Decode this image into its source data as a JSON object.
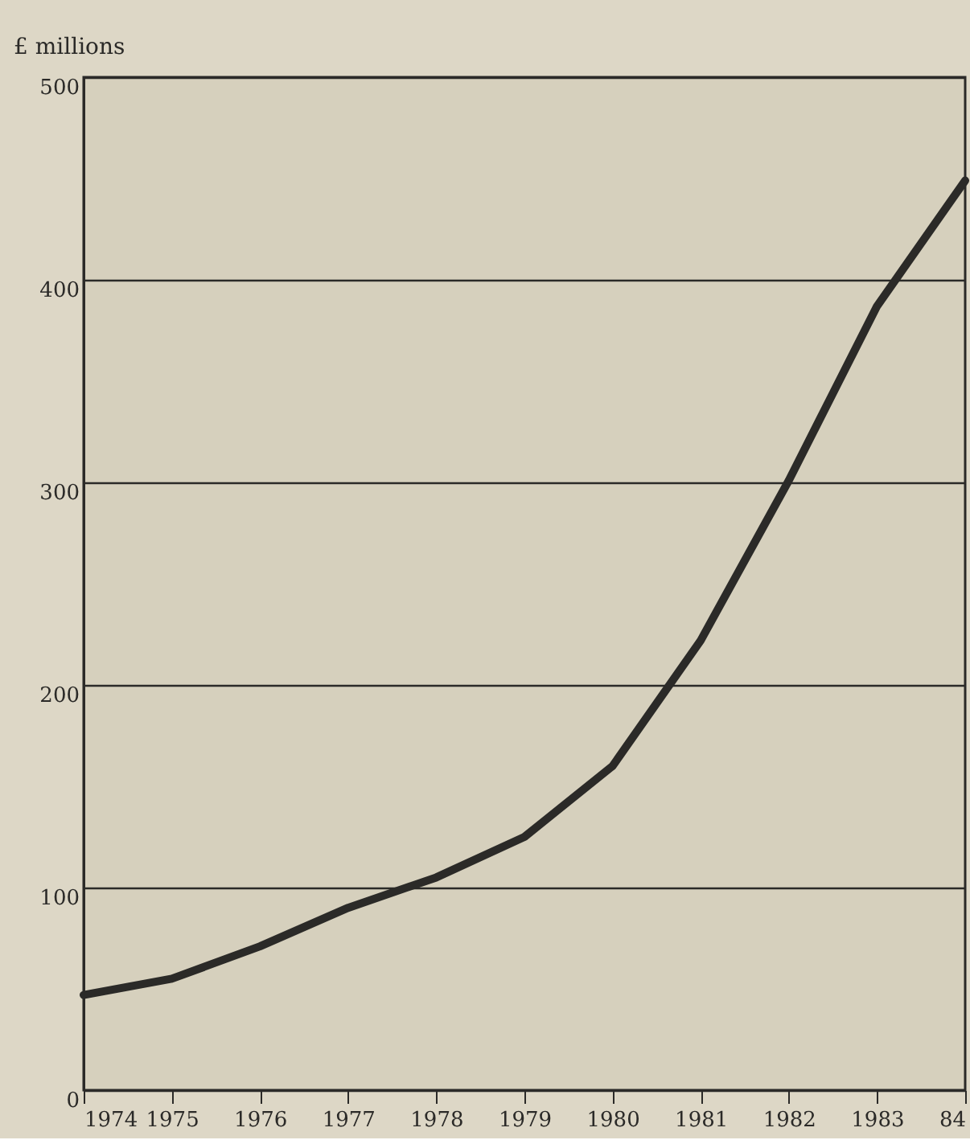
{
  "chart_data": {
    "type": "line",
    "ylabel": "£ millions",
    "x": [
      1974,
      1975,
      1976,
      1977,
      1978,
      1979,
      1980,
      1981,
      1982,
      1983,
      1984
    ],
    "series": [
      {
        "color": "#2b2a28",
        "values": [
          47,
          55,
          71,
          90,
          105,
          125,
          160,
          222,
          301,
          387,
          449
        ]
      }
    ],
    "xlim": [
      1974,
      1984
    ],
    "xticks": [
      1974,
      1975,
      1976,
      1977,
      1978,
      1979,
      1980,
      1981,
      1982,
      1983,
      {
        "value": 1984,
        "label": "84"
      }
    ],
    "ylim": [
      0,
      500
    ],
    "yticks": [
      0,
      100,
      200,
      300,
      400,
      500
    ],
    "grid": "y",
    "marker": "none",
    "line_style": "solid"
  }
}
